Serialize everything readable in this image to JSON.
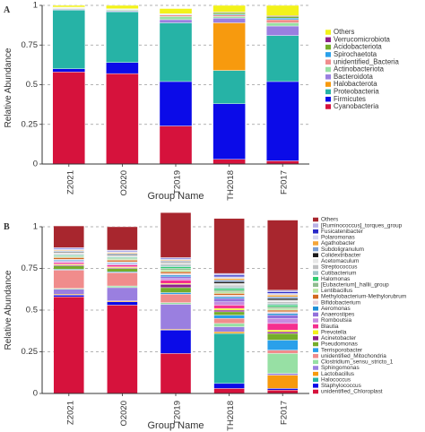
{
  "chart_data": [
    {
      "type": "bar",
      "stacked": true,
      "panel_label": "A",
      "xlabel": "Group Name",
      "ylabel": "Relative Abundance",
      "ylim": [
        0,
        1
      ],
      "yticks": [
        0,
        0.25,
        0.5,
        0.75,
        1
      ],
      "ytick_labels": [
        "0",
        "0.25",
        "0.5",
        "0.75",
        "1"
      ],
      "grid": "horizontal dashed",
      "legend_position": "right",
      "categories": [
        "Z2021",
        "O2020",
        "T2019",
        "TH2018",
        "F2017"
      ],
      "series": [
        {
          "name": "Cyanobacteria",
          "color": "#d6123c",
          "values": [
            0.58,
            0.57,
            0.24,
            0.03,
            0.02
          ]
        },
        {
          "name": "Firmicutes",
          "color": "#0b0be8",
          "values": [
            0.02,
            0.07,
            0.28,
            0.35,
            0.5
          ]
        },
        {
          "name": "Proteobacteria",
          "color": "#26b3a6",
          "values": [
            0.37,
            0.32,
            0.37,
            0.21,
            0.29
          ]
        },
        {
          "name": "Halobacterota",
          "color": "#f79a0e",
          "values": [
            0.0,
            0.0,
            0.0,
            0.3,
            0.0
          ]
        },
        {
          "name": "Bacteroidota",
          "color": "#9a7fe0",
          "values": [
            0.005,
            0.005,
            0.02,
            0.03,
            0.06
          ]
        },
        {
          "name": "Actinobacteriota",
          "color": "#97e0a4",
          "values": [
            0.005,
            0.005,
            0.02,
            0.01,
            0.02
          ]
        },
        {
          "name": "unidentified_Bacteria",
          "color": "#f08c8c",
          "values": [
            0.003,
            0.003,
            0.01,
            0.01,
            0.02
          ]
        },
        {
          "name": "Spirochaetota",
          "color": "#2aa0ea",
          "values": [
            0.002,
            0.002,
            0.003,
            0.005,
            0.01
          ]
        },
        {
          "name": "Acidobacteriota",
          "color": "#75ad2a",
          "values": [
            0.002,
            0.002,
            0.003,
            0.01,
            0.01
          ]
        },
        {
          "name": "Verrucomicrobiota",
          "color": "#8e1f8a",
          "values": [
            0.002,
            0.002,
            0.002,
            0.003,
            0.005
          ]
        },
        {
          "name": "Others",
          "color": "#f2f21a",
          "values": [
            0.011,
            0.021,
            0.032,
            0.042,
            0.065
          ]
        }
      ]
    },
    {
      "type": "bar",
      "stacked": true,
      "panel_label": "B",
      "xlabel": "Group Name",
      "ylabel": "Relative Abundance",
      "ylim": [
        0,
        1
      ],
      "yticks": [
        0,
        0.25,
        0.5,
        0.75,
        1
      ],
      "ytick_labels": [
        "0",
        "0.25",
        "0.5",
        "0.75",
        "1"
      ],
      "grid": "horizontal dashed",
      "legend_position": "right",
      "categories": [
        "Z2021",
        "O2020",
        "T2019",
        "TH2018",
        "F2017"
      ],
      "series": [
        {
          "name": "unidentified_Chloroplast",
          "color": "#d6123c",
          "values": [
            0.58,
            0.53,
            0.24,
            0.03,
            0.02
          ]
        },
        {
          "name": "Staphylococcus",
          "color": "#0b0be8",
          "values": [
            0.01,
            0.02,
            0.14,
            0.03,
            0.01
          ]
        },
        {
          "name": "Halococcus",
          "color": "#26b3a6",
          "values": [
            0.0,
            0.0,
            0.0,
            0.3,
            0.0
          ]
        },
        {
          "name": "Lactobacillus",
          "color": "#f79a0e",
          "values": [
            0.005,
            0.005,
            0.005,
            0.01,
            0.08
          ]
        },
        {
          "name": "Sphingomonas",
          "color": "#9a7fe0",
          "values": [
            0.03,
            0.08,
            0.15,
            0.03,
            0.01
          ]
        },
        {
          "name": "Clostridium_sensu_stricto_1",
          "color": "#97e0a4",
          "values": [
            0.005,
            0.01,
            0.01,
            0.02,
            0.12
          ]
        },
        {
          "name": "unidentified_Mitochondria",
          "color": "#f08c8c",
          "values": [
            0.11,
            0.08,
            0.05,
            0.03,
            0.02
          ]
        },
        {
          "name": "Terrisporobacter",
          "color": "#2aa0ea",
          "values": [
            0.005,
            0.005,
            0.01,
            0.02,
            0.06
          ]
        },
        {
          "name": "Pseudomonas",
          "color": "#75ad2a",
          "values": [
            0.02,
            0.02,
            0.03,
            0.02,
            0.04
          ]
        },
        {
          "name": "Acinetobacter",
          "color": "#8e1f8a",
          "values": [
            0.005,
            0.005,
            0.02,
            0.01,
            0.01
          ]
        },
        {
          "name": "Prevotella",
          "color": "#f2f21a",
          "values": [
            0.005,
            0.005,
            0.005,
            0.01,
            0.01
          ]
        },
        {
          "name": "Blautia",
          "color": "#f52f8f",
          "values": [
            0.01,
            0.01,
            0.02,
            0.02,
            0.04
          ]
        },
        {
          "name": "Romboutsia",
          "color": "#c78be0",
          "values": [
            0.005,
            0.005,
            0.01,
            0.02,
            0.03
          ]
        },
        {
          "name": "Anaerostipes",
          "color": "#9370db",
          "values": [
            0.005,
            0.005,
            0.01,
            0.02,
            0.02
          ]
        },
        {
          "name": "Aeromonas",
          "color": "#1f8dd6",
          "values": [
            0.005,
            0.005,
            0.01,
            0.01,
            0.01
          ]
        },
        {
          "name": "Bifidobacterium",
          "color": "#e8d0d8",
          "values": [
            0.005,
            0.005,
            0.01,
            0.01,
            0.01
          ]
        },
        {
          "name": "Methylobacterium-Methylorubrum",
          "color": "#d2691e",
          "values": [
            0.01,
            0.01,
            0.01,
            0.01,
            0.01
          ]
        },
        {
          "name": "Lentibacillus",
          "color": "#b8e6a0",
          "values": [
            0.005,
            0.005,
            0.01,
            0.01,
            0.01
          ]
        },
        {
          "name": "[Eubacterium]_hallii_group",
          "color": "#8fbc8f",
          "values": [
            0.005,
            0.005,
            0.01,
            0.01,
            0.01
          ]
        },
        {
          "name": "Halomonas",
          "color": "#2ecc71",
          "values": [
            0.005,
            0.005,
            0.01,
            0.01,
            0.01
          ]
        },
        {
          "name": "Cutibacterium",
          "color": "#9fc7c7",
          "values": [
            0.005,
            0.005,
            0.01,
            0.01,
            0.01
          ]
        },
        {
          "name": "Streptococcus",
          "color": "#bfc0c2",
          "values": [
            0.005,
            0.005,
            0.01,
            0.01,
            0.01
          ]
        },
        {
          "name": "Acetomaculum",
          "color": "#e6e6e6",
          "values": [
            0.005,
            0.005,
            0.005,
            0.01,
            0.01
          ]
        },
        {
          "name": "Colidextribacter",
          "color": "#1a1a1a",
          "values": [
            0.005,
            0.005,
            0.005,
            0.01,
            0.01
          ]
        },
        {
          "name": "Subdoligranulum",
          "color": "#7b9fd4",
          "values": [
            0.005,
            0.005,
            0.005,
            0.01,
            0.01
          ]
        },
        {
          "name": "Agathobacter",
          "color": "#f4a63a",
          "values": [
            0.005,
            0.005,
            0.005,
            0.01,
            0.01
          ]
        },
        {
          "name": "Polaromonas",
          "color": "#d8d8f0",
          "values": [
            0.005,
            0.005,
            0.005,
            0.01,
            0.01
          ]
        },
        {
          "name": "Fusicatenibacter",
          "color": "#2929c8",
          "values": [
            0.005,
            0.005,
            0.005,
            0.01,
            0.01
          ]
        },
        {
          "name": "[Ruminococcus]_torques_group",
          "color": "#b9b2e6",
          "values": [
            0.005,
            0.005,
            0.005,
            0.01,
            0.01
          ]
        },
        {
          "name": "Others",
          "color": "#a8262e",
          "values": [
            0.13,
            0.14,
            0.27,
            0.33,
            0.42
          ]
        }
      ]
    }
  ]
}
